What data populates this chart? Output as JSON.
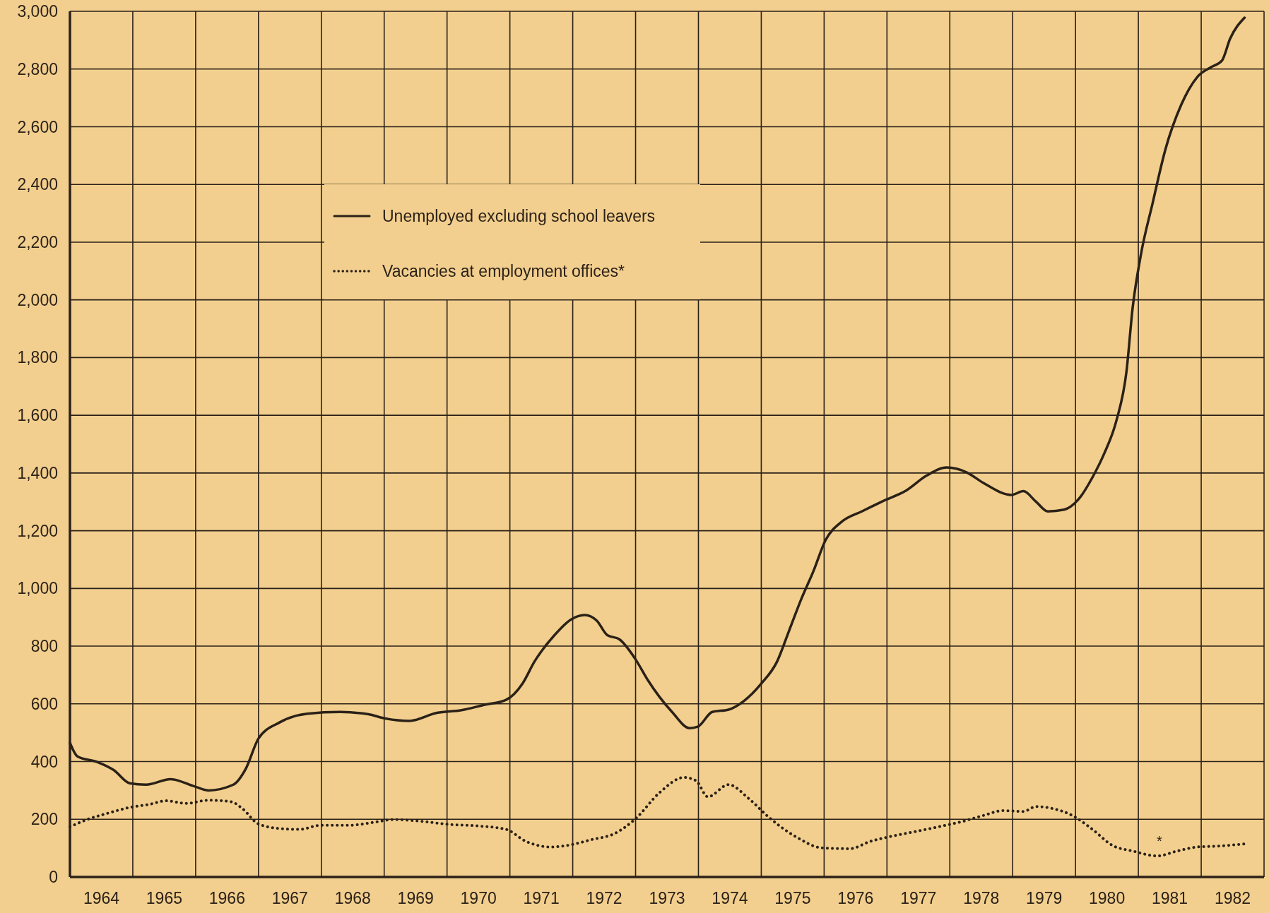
{
  "chart_data": {
    "type": "line",
    "xlim": [
      1964,
      1983
    ],
    "xticks": [
      {
        "value": 1964,
        "label": null
      },
      {
        "value": 1964.5,
        "label": "1964"
      },
      {
        "value": 1965,
        "label": null
      },
      {
        "value": 1965.5,
        "label": "1965"
      },
      {
        "value": 1966,
        "label": null
      },
      {
        "value": 1966.5,
        "label": "1966"
      },
      {
        "value": 1967,
        "label": null
      },
      {
        "value": 1967.5,
        "label": "1967"
      },
      {
        "value": 1968,
        "label": null
      },
      {
        "value": 1968.5,
        "label": "1968"
      },
      {
        "value": 1969,
        "label": null
      },
      {
        "value": 1969.5,
        "label": "1969"
      },
      {
        "value": 1970,
        "label": null
      },
      {
        "value": 1970.5,
        "label": "1970"
      },
      {
        "value": 1971,
        "label": null
      },
      {
        "value": 1971.5,
        "label": "1971"
      },
      {
        "value": 1972,
        "label": null
      },
      {
        "value": 1972.5,
        "label": "1972"
      },
      {
        "value": 1973,
        "label": null
      },
      {
        "value": 1973.5,
        "label": "1973"
      },
      {
        "value": 1974,
        "label": null
      },
      {
        "value": 1974.5,
        "label": "1974"
      },
      {
        "value": 1975,
        "label": null
      },
      {
        "value": 1975.5,
        "label": "1975"
      },
      {
        "value": 1976,
        "label": null
      },
      {
        "value": 1976.5,
        "label": "1976"
      },
      {
        "value": 1977,
        "label": null
      },
      {
        "value": 1977.5,
        "label": "1977"
      },
      {
        "value": 1978,
        "label": null
      },
      {
        "value": 1978.5,
        "label": "1978"
      },
      {
        "value": 1979,
        "label": null
      },
      {
        "value": 1979.5,
        "label": "1979"
      },
      {
        "value": 1980,
        "label": null
      },
      {
        "value": 1980.5,
        "label": "1980"
      },
      {
        "value": 1981,
        "label": null
      },
      {
        "value": 1981.5,
        "label": "1981"
      },
      {
        "value": 1982,
        "label": null
      },
      {
        "value": 1982.5,
        "label": "1982"
      },
      {
        "value": 1983,
        "label": null
      }
    ],
    "ylim": [
      0,
      3000
    ],
    "yticks": [
      0,
      200,
      400,
      600,
      800,
      {
        "value": 1000,
        "label": "1,000"
      },
      {
        "value": 1200,
        "label": "1,200"
      },
      {
        "value": 1400,
        "label": "1,400"
      },
      {
        "value": 1600,
        "label": "1,600"
      },
      {
        "value": 1800,
        "label": "1,800"
      },
      {
        "value": 2000,
        "label": "2,000"
      },
      {
        "value": 2200,
        "label": "2,200"
      },
      {
        "value": 2400,
        "label": "2,400"
      },
      {
        "value": 2600,
        "label": "2,600"
      },
      {
        "value": 2800,
        "label": "2,800"
      },
      {
        "value": 3000,
        "label": "3,000"
      }
    ],
    "grid": true,
    "legend": "top left",
    "series": [
      {
        "name": "Unemployed excluding school leavers",
        "color": "#2b2118",
        "line_style": "solid",
        "x": [
          1964.0,
          1964.12,
          1964.44,
          1964.7,
          1964.95,
          1965.21,
          1965.6,
          1965.98,
          1966.2,
          1966.6,
          1966.8,
          1967.0,
          1967.33,
          1967.78,
          1968.3,
          1968.75,
          1969.0,
          1969.4,
          1969.84,
          1970.23,
          1970.6,
          1970.94,
          1971.2,
          1971.39,
          1971.71,
          1971.97,
          1972.19,
          1972.38,
          1972.55,
          1972.74,
          1973.0,
          1973.19,
          1973.58,
          1973.86,
          1973.99,
          1974.22,
          1974.48,
          1974.73,
          1975.0,
          1975.25,
          1975.44,
          1975.64,
          1975.83,
          1976.02,
          1976.28,
          1976.6,
          1976.92,
          1977.31,
          1977.63,
          1977.95,
          1978.27,
          1978.53,
          1978.98,
          1979.17,
          1979.37,
          1979.56,
          1979.82,
          1980.07,
          1980.27,
          1980.46,
          1980.65,
          1980.81,
          1980.91,
          1981.04,
          1981.23,
          1981.43,
          1981.68,
          1981.94,
          1982.16,
          1982.33,
          1982.46,
          1982.69
        ],
        "values": [
          465,
          418,
          398,
          370,
          325,
          320,
          339,
          314,
          300,
          320,
          376,
          480,
          535,
          566,
          572,
          564,
          550,
          541,
          569,
          578,
          597,
          614,
          670,
          746,
          838,
          892,
          908,
          889,
          838,
          824,
          754,
          684,
          572,
          516,
          521,
          572,
          580,
          611,
          670,
          746,
          852,
          965,
          1060,
          1166,
          1231,
          1267,
          1301,
          1340,
          1391,
          1419,
          1402,
          1366,
          1324,
          1337,
          1301,
          1267,
          1273,
          1315,
          1385,
          1469,
          1581,
          1750,
          1974,
          2156,
          2338,
          2521,
          2675,
          2773,
          2807,
          2829,
          2905,
          2978
        ]
      },
      {
        "name": "Vacancies at employment offices*",
        "color": "#2b2118",
        "line_style": "dotted",
        "x": [
          1964.0,
          1964.31,
          1964.57,
          1964.95,
          1965.27,
          1965.53,
          1965.85,
          1966.2,
          1966.56,
          1966.75,
          1966.99,
          1967.33,
          1967.66,
          1967.98,
          1968.43,
          1968.88,
          1969.14,
          1969.59,
          1970.04,
          1970.49,
          1970.94,
          1971.26,
          1971.65,
          1971.9,
          1972.29,
          1972.67,
          1973.0,
          1973.38,
          1973.77,
          1973.96,
          1974.15,
          1974.48,
          1974.8,
          1975.12,
          1975.57,
          1975.96,
          1976.41,
          1976.73,
          1977.05,
          1977.44,
          1977.82,
          1978.21,
          1978.53,
          1978.85,
          1979.17,
          1979.37,
          1979.62,
          1979.95,
          1980.27,
          1980.59,
          1980.91,
          1981.3,
          1981.62,
          1981.94,
          1982.27,
          1982.71
        ],
        "values": [
          174,
          202,
          219,
          241,
          252,
          264,
          255,
          266,
          261,
          236,
          185,
          168,
          165,
          179,
          179,
          191,
          199,
          193,
          182,
          177,
          165,
          123,
          104,
          109,
          129,
          151,
          202,
          292,
          345,
          334,
          278,
          320,
          272,
          207,
          137,
          101,
          98,
          123,
          140,
          157,
          174,
          193,
          213,
          230,
          227,
          244,
          238,
          213,
          165,
          109,
          90,
          73,
          90,
          104,
          107,
          115
        ]
      }
    ],
    "annotations": [
      "*"
    ]
  }
}
